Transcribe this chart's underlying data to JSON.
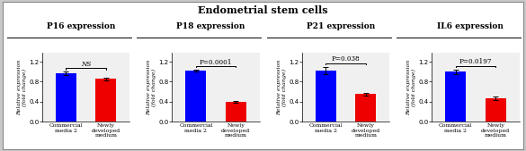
{
  "title": "Endometrial stem cells",
  "subplots": [
    {
      "title": "P16 expression",
      "values": [
        0.97,
        0.855
      ],
      "errors": [
        0.03,
        0.025
      ],
      "sig_text": "NS",
      "ylim": [
        0,
        1.38
      ],
      "yticks": [
        0.0,
        0.4,
        0.8,
        1.2
      ]
    },
    {
      "title": "P18 expression",
      "values": [
        1.02,
        0.39
      ],
      "errors": [
        0.022,
        0.02
      ],
      "sig_text": "P=0.0001",
      "ylim": [
        0,
        1.38
      ],
      "yticks": [
        0.0,
        0.4,
        0.8,
        1.2
      ]
    },
    {
      "title": "P21 expression",
      "values": [
        1.03,
        0.55
      ],
      "errors": [
        0.07,
        0.028
      ],
      "sig_text": "P=0.038",
      "ylim": [
        0,
        1.38
      ],
      "yticks": [
        0.0,
        0.4,
        0.8,
        1.2
      ]
    },
    {
      "title": "IL6 expression",
      "values": [
        1.0,
        0.47
      ],
      "errors": [
        0.045,
        0.038
      ],
      "sig_text": "P=0.0197",
      "ylim": [
        0,
        1.38
      ],
      "yticks": [
        0.0,
        0.4,
        0.8,
        1.2
      ]
    }
  ],
  "bar_colors": [
    "#0000ff",
    "#ee0000"
  ],
  "categories": [
    "Commercial\nmedia 2",
    "Newly\ndeveloped\nmedium"
  ],
  "ylabel": "Relative expression\n(fold change)",
  "outer_bg": "#c8c8c8",
  "inner_bg": "#ffffff",
  "panel_bg": "#f0f0f0",
  "title_fontsize": 8.0,
  "subtitle_fontsize": 6.5,
  "tick_fontsize": 5.0,
  "label_fontsize": 4.5,
  "sig_fontsize": 5.2,
  "ylabel_fontsize": 4.5
}
